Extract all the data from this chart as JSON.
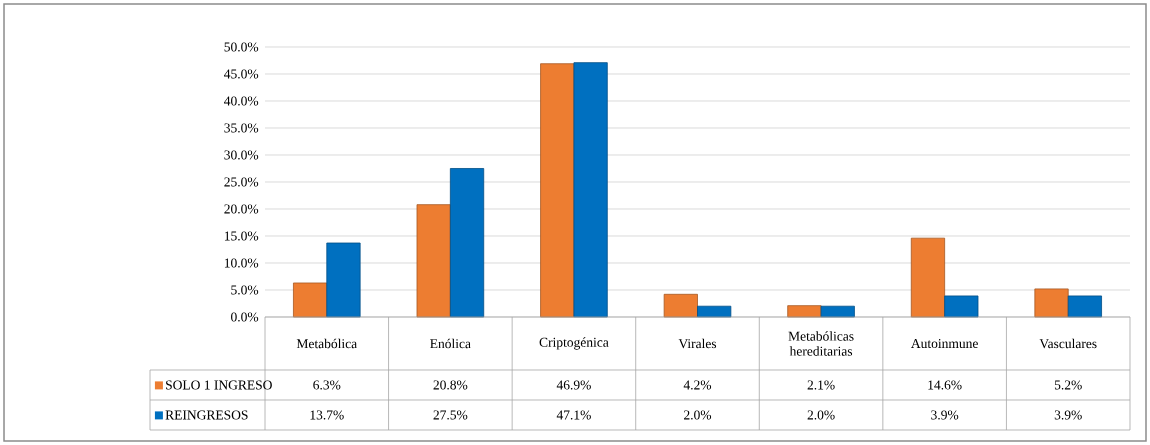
{
  "chart_data": {
    "type": "bar",
    "categories": [
      "Metabólica",
      "Enólica",
      "Criptogénica",
      "Virales",
      "Metabólicas hereditarias",
      "Autoinmune",
      "Vasculares"
    ],
    "series": [
      {
        "name": "SOLO 1 INGRESO",
        "color": "#ed7d31",
        "values": [
          6.3,
          20.8,
          46.9,
          4.2,
          2.1,
          14.6,
          5.2
        ],
        "value_labels": [
          "6.3%",
          "20.8%",
          "46.9%",
          "4.2%",
          "2.1%",
          "14.6%",
          "5.2%"
        ]
      },
      {
        "name": "REINGRESOS",
        "color": "#0070c0",
        "values": [
          13.7,
          27.5,
          47.1,
          2.0,
          2.0,
          3.9,
          3.9
        ],
        "value_labels": [
          "13.7%",
          "27.5%",
          "47.1%",
          "2.0%",
          "2.0%",
          "3.9%",
          "3.9%"
        ]
      }
    ],
    "ylim": [
      0,
      50
    ],
    "yticks": [
      {
        "value": 0,
        "label": "0.0%"
      },
      {
        "value": 5,
        "label": "5.0%"
      },
      {
        "value": 10,
        "label": "10.0%"
      },
      {
        "value": 15,
        "label": "15.0%"
      },
      {
        "value": 20,
        "label": "20.0%"
      },
      {
        "value": 25,
        "label": "25.0%"
      },
      {
        "value": 30,
        "label": "30.0%"
      },
      {
        "value": 35,
        "label": "35.0%"
      },
      {
        "value": 40,
        "label": "40.0%"
      },
      {
        "value": 45,
        "label": "45.0%"
      },
      {
        "value": 50,
        "label": "50.0%"
      }
    ],
    "grid": "y",
    "legend": "bottom"
  }
}
